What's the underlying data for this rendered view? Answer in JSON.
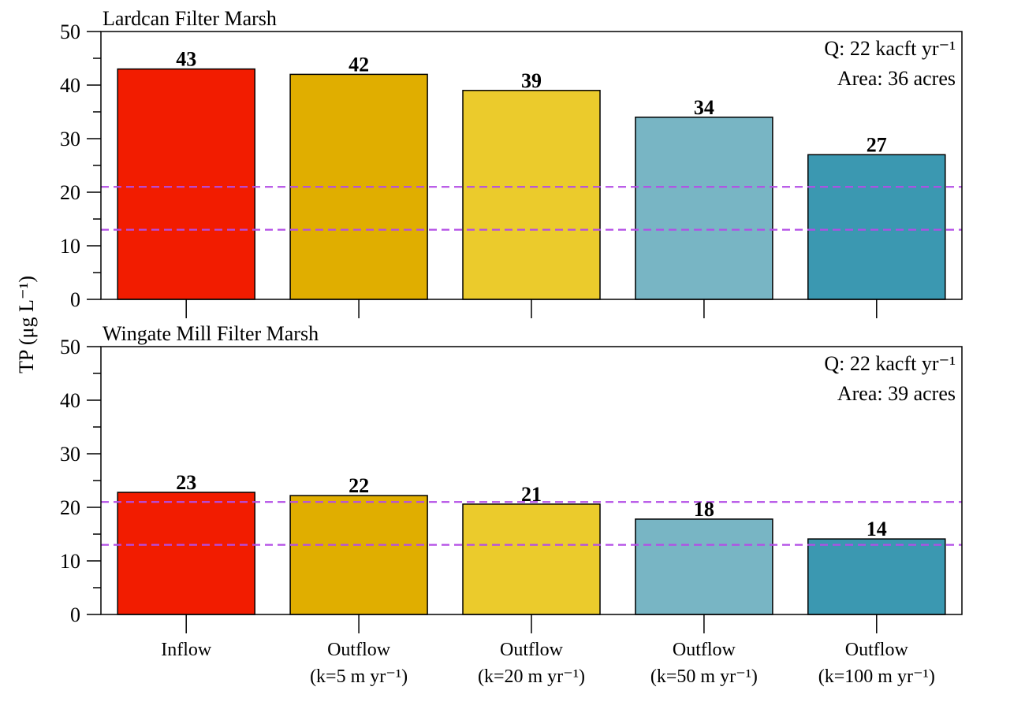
{
  "ylabel": "TP (μg L⁻¹)",
  "colors": {
    "frame": "#000000",
    "threshold": "#b34de6",
    "bars": [
      "#f21c00",
      "#e0ae00",
      "#ebcb2c",
      "#78b5c4",
      "#3b98b1"
    ]
  },
  "chart_data": [
    {
      "type": "bar",
      "title": "Lardcan Filter Marsh",
      "categories": [
        [
          "Inflow"
        ],
        [
          "Outflow",
          "(k=5 m yr⁻¹)"
        ],
        [
          "Outflow",
          "(k=20 m yr⁻¹)"
        ],
        [
          "Outflow",
          "(k=50 m yr⁻¹)"
        ],
        [
          "Outflow",
          "(k=100 m yr⁻¹)"
        ]
      ],
      "values": [
        43,
        42,
        39,
        34,
        27
      ],
      "value_labels": [
        "43",
        "42",
        "39",
        "34",
        "27"
      ],
      "ylim": [
        0,
        50
      ],
      "yticks": [
        0,
        10,
        20,
        30,
        40,
        50
      ],
      "reference_lines": [
        21,
        13
      ],
      "annotations": [
        "Q: 22 kacft yr⁻¹",
        "Area: 36 acres"
      ],
      "show_x_labels": false
    },
    {
      "type": "bar",
      "title": "Wingate Mill Filter Marsh",
      "categories": [
        [
          "Inflow"
        ],
        [
          "Outflow",
          "(k=5 m yr⁻¹)"
        ],
        [
          "Outflow",
          "(k=20 m yr⁻¹)"
        ],
        [
          "Outflow",
          "(k=50 m yr⁻¹)"
        ],
        [
          "Outflow",
          "(k=100 m yr⁻¹)"
        ]
      ],
      "values": [
        22.8,
        22.2,
        20.6,
        17.8,
        14.1
      ],
      "value_labels": [
        "23",
        "22",
        "21",
        "18",
        "14"
      ],
      "ylim": [
        0,
        50
      ],
      "yticks": [
        0,
        10,
        20,
        30,
        40,
        50
      ],
      "reference_lines": [
        21,
        13
      ],
      "annotations": [
        "Q: 22 kacft yr⁻¹",
        "Area: 39 acres"
      ],
      "show_x_labels": true
    }
  ]
}
